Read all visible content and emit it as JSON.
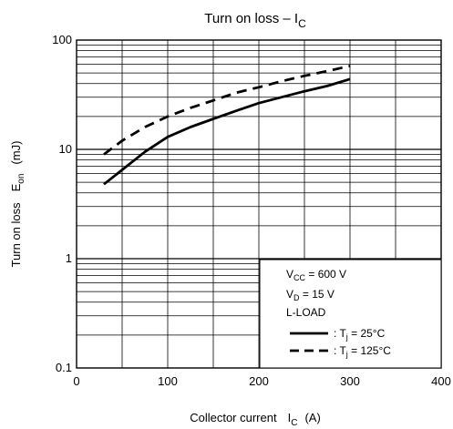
{
  "chart_data": {
    "type": "line",
    "title": {
      "main": "Turn on loss – I",
      "sub": "C"
    },
    "xlabel": {
      "main": "Collector current",
      "sym": "I",
      "sub": "C",
      "unit": "(A)"
    },
    "ylabel": {
      "main": "Turn on loss",
      "sym": "E",
      "sub": "on",
      "unit": "(mJ)"
    },
    "xlim": [
      0,
      400
    ],
    "ylim": [
      0.1,
      100
    ],
    "y_scale": "log",
    "grid": true,
    "x_ticks": [
      {
        "value": 0,
        "label": "0"
      },
      {
        "value": 100,
        "label": "100"
      },
      {
        "value": 200,
        "label": "200"
      },
      {
        "value": 300,
        "label": "300"
      },
      {
        "value": 400,
        "label": "400"
      }
    ],
    "y_ticks": [
      {
        "value": 0.1,
        "label": "0.1"
      },
      {
        "value": 1,
        "label": "1"
      },
      {
        "value": 10,
        "label": "10"
      },
      {
        "value": 100,
        "label": "100"
      }
    ],
    "conditions": [
      {
        "main": "V",
        "sub": "CC",
        "rest": " = 600 V"
      },
      {
        "main": "V",
        "sub": "D",
        "rest": " = 15 V"
      },
      {
        "main": "L-LOAD",
        "sub": "",
        "rest": ""
      }
    ],
    "legend_position": "bottom-right",
    "series": [
      {
        "name": "T_j = 25°C",
        "legend": {
          "pre": ": T",
          "sub": "j",
          "rest": " = 25°C"
        },
        "style": "solid",
        "color": "#000000",
        "x": [
          30,
          50,
          75,
          100,
          125,
          150,
          175,
          200,
          225,
          250,
          275,
          300
        ],
        "y": [
          4.8,
          6.5,
          9.5,
          13,
          16,
          19,
          22.5,
          26.5,
          30,
          34,
          38,
          44
        ]
      },
      {
        "name": "T_j = 125°C",
        "legend": {
          "pre": ": T",
          "sub": "j",
          "rest": " = 125°C"
        },
        "style": "dashed",
        "color": "#000000",
        "x": [
          30,
          50,
          75,
          100,
          125,
          150,
          175,
          200,
          225,
          250,
          275,
          300
        ],
        "y": [
          9,
          12,
          16,
          20,
          24,
          28,
          33,
          37,
          42,
          47,
          52,
          58
        ]
      }
    ]
  }
}
